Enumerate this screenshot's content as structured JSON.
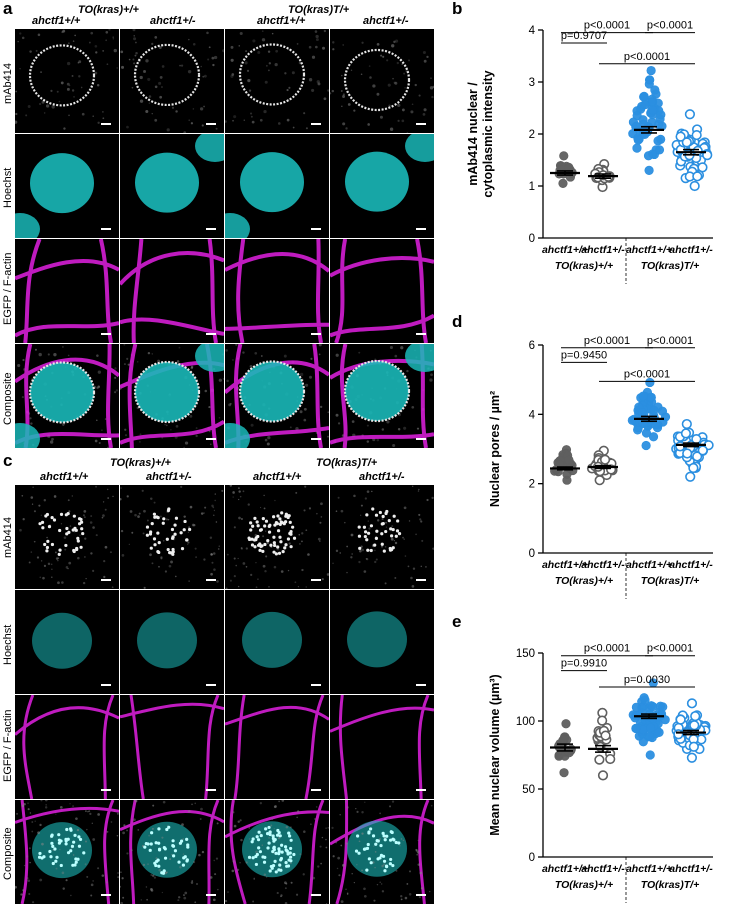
{
  "panel_a": {
    "letter": "a",
    "group_headers": [
      "TO(kras)+/+",
      "TO(kras)T/+"
    ],
    "col_headers": [
      "ahctf1+/+",
      "ahctf1+/-",
      "ahctf1+/+",
      "ahctf1+/-"
    ],
    "row_labels": [
      "mAb414",
      "Hoechst",
      "EGFP / F-actin",
      "Composite"
    ]
  },
  "panel_c": {
    "letter": "c",
    "group_headers": [
      "TO(kras)+/+",
      "TO(kras)T/+"
    ],
    "col_headers": [
      "ahctf1+/+",
      "ahctf1+/-",
      "ahctf1+/+",
      "ahctf1+/-"
    ],
    "row_labels": [
      "mAb414",
      "Hoechst",
      "EGFP / F-actin",
      "Composite"
    ]
  },
  "colors": {
    "cyan": "#1ab8b8",
    "magenta": "#e020e0",
    "dark_gray": "#5f5f5f",
    "blue": "#2b8fe0",
    "black_bg": "#000000"
  },
  "x_groups": {
    "genotypes": [
      "ahctf1+/+",
      "ahctf1+/-",
      "ahctf1+/+",
      "ahctf1+/-"
    ],
    "backgrounds": [
      "TO(kras)+/+",
      "TO(kras)T/+"
    ]
  },
  "chart_data": [
    {
      "panel": "b",
      "type": "scatter",
      "ylabel": "mAb414 nuclear / cytoplasmic intensity",
      "ylim": [
        0,
        4
      ],
      "yticks": [
        0,
        1,
        2,
        3,
        4
      ],
      "series": [
        {
          "mean": 1.25,
          "sem": 0.04,
          "min": 1.05,
          "max": 1.58,
          "n": 18,
          "style": "filled-gray"
        },
        {
          "mean": 1.19,
          "sem": 0.04,
          "min": 0.98,
          "max": 1.42,
          "n": 20,
          "style": "open-gray"
        },
        {
          "mean": 2.08,
          "sem": 0.06,
          "min": 1.3,
          "max": 3.22,
          "n": 55,
          "style": "filled-blue"
        },
        {
          "mean": 1.65,
          "sem": 0.05,
          "min": 1.0,
          "max": 2.38,
          "n": 50,
          "style": "open-blue"
        }
      ],
      "comparisons": [
        {
          "from": 0,
          "to": 1,
          "label": "p=0.9707",
          "y": 3.75
        },
        {
          "from": 1,
          "to": 3,
          "label": "p<0.0001",
          "y": 3.35
        },
        {
          "from": 0,
          "to": 2,
          "label": "p<0.0001",
          "y": 3.95
        },
        {
          "from": 2,
          "to": 3,
          "label": "p<0.0001",
          "y": 3.95
        }
      ]
    },
    {
      "panel": "d",
      "type": "scatter",
      "ylabel": "Nuclear pores / µm²",
      "ylim": [
        0,
        6
      ],
      "yticks": [
        0,
        2,
        4,
        6
      ],
      "series": [
        {
          "mean": 2.44,
          "sem": 0.04,
          "min": 2.1,
          "max": 2.98,
          "n": 30,
          "style": "filled-gray"
        },
        {
          "mean": 2.48,
          "sem": 0.04,
          "min": 2.1,
          "max": 2.95,
          "n": 30,
          "style": "open-gray"
        },
        {
          "mean": 3.87,
          "sem": 0.07,
          "min": 3.1,
          "max": 4.92,
          "n": 55,
          "style": "filled-blue"
        },
        {
          "mean": 3.12,
          "sem": 0.05,
          "min": 2.2,
          "max": 3.72,
          "n": 50,
          "style": "open-blue"
        }
      ],
      "comparisons": [
        {
          "from": 0,
          "to": 1,
          "label": "p=0.9450",
          "y": 5.5
        },
        {
          "from": 1,
          "to": 3,
          "label": "p<0.0001",
          "y": 4.95
        },
        {
          "from": 0,
          "to": 2,
          "label": "p<0.0001",
          "y": 5.92
        },
        {
          "from": 2,
          "to": 3,
          "label": "p<0.0001",
          "y": 5.92
        }
      ]
    },
    {
      "panel": "e",
      "type": "scatter",
      "ylabel": "Mean nuclear volume (µm³)",
      "ylim": [
        0,
        150
      ],
      "yticks": [
        0,
        50,
        100,
        150
      ],
      "series": [
        {
          "mean": 80.5,
          "sem": 2.5,
          "min": 62,
          "max": 98,
          "n": 18,
          "style": "filled-gray"
        },
        {
          "mean": 79.5,
          "sem": 2.4,
          "min": 60,
          "max": 106,
          "n": 22,
          "style": "open-gray"
        },
        {
          "mean": 103.5,
          "sem": 1.6,
          "min": 75,
          "max": 128,
          "n": 60,
          "style": "filled-blue"
        },
        {
          "mean": 91.5,
          "sem": 1.5,
          "min": 73,
          "max": 113,
          "n": 55,
          "style": "open-blue"
        }
      ],
      "comparisons": [
        {
          "from": 0,
          "to": 1,
          "label": "p=0.9910",
          "y": 137
        },
        {
          "from": 1,
          "to": 3,
          "label": "p=0.0030",
          "y": 125
        },
        {
          "from": 0,
          "to": 2,
          "label": "p<0.0001",
          "y": 148
        },
        {
          "from": 2,
          "to": 3,
          "label": "p<0.0001",
          "y": 148
        }
      ]
    }
  ]
}
